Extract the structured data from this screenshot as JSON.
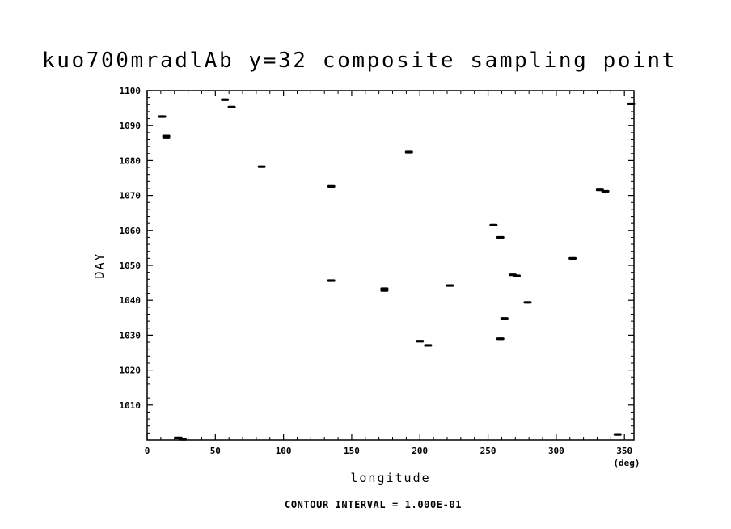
{
  "title": "kuo700mradlAb y=32 composite sampling point",
  "footer": "CONTOUR INTERVAL = 1.000E-01",
  "chart_data": {
    "type": "scatter",
    "title": "kuo700mradlAb y=32 composite sampling point",
    "xlabel": "longitude",
    "xunit": "(deg)",
    "ylabel": "DAY",
    "xlim": [
      0,
      357
    ],
    "ylim": [
      1000,
      1100
    ],
    "xticks": [
      0,
      50,
      100,
      150,
      200,
      250,
      300,
      350
    ],
    "yticks": [
      1010,
      1020,
      1030,
      1040,
      1050,
      1060,
      1070,
      1080,
      1090,
      1100
    ],
    "grid": false,
    "points": [
      {
        "x": 11,
        "y": 1092.6
      },
      {
        "x": 14,
        "y": 1087
      },
      {
        "x": 14,
        "y": 1086.5
      },
      {
        "x": 57,
        "y": 1097.4
      },
      {
        "x": 62,
        "y": 1095.3
      },
      {
        "x": 84,
        "y": 1078.2
      },
      {
        "x": 135,
        "y": 1072.6
      },
      {
        "x": 135,
        "y": 1045.6
      },
      {
        "x": 174,
        "y": 1043.3
      },
      {
        "x": 174,
        "y": 1042.8
      },
      {
        "x": 192,
        "y": 1082.4
      },
      {
        "x": 200,
        "y": 1028.3
      },
      {
        "x": 206,
        "y": 1027.1
      },
      {
        "x": 222,
        "y": 1044.2
      },
      {
        "x": 254,
        "y": 1061.5
      },
      {
        "x": 259,
        "y": 1058
      },
      {
        "x": 259,
        "y": 1029
      },
      {
        "x": 262,
        "y": 1034.8
      },
      {
        "x": 268,
        "y": 1047.3
      },
      {
        "x": 271,
        "y": 1047
      },
      {
        "x": 279,
        "y": 1039.4
      },
      {
        "x": 312,
        "y": 1052
      },
      {
        "x": 332,
        "y": 1071.6
      },
      {
        "x": 336,
        "y": 1071.2
      },
      {
        "x": 355,
        "y": 1096.2
      },
      {
        "x": 23,
        "y": 1000.6
      },
      {
        "x": 26,
        "y": 1000.2
      },
      {
        "x": 345,
        "y": 1001.6
      }
    ]
  }
}
